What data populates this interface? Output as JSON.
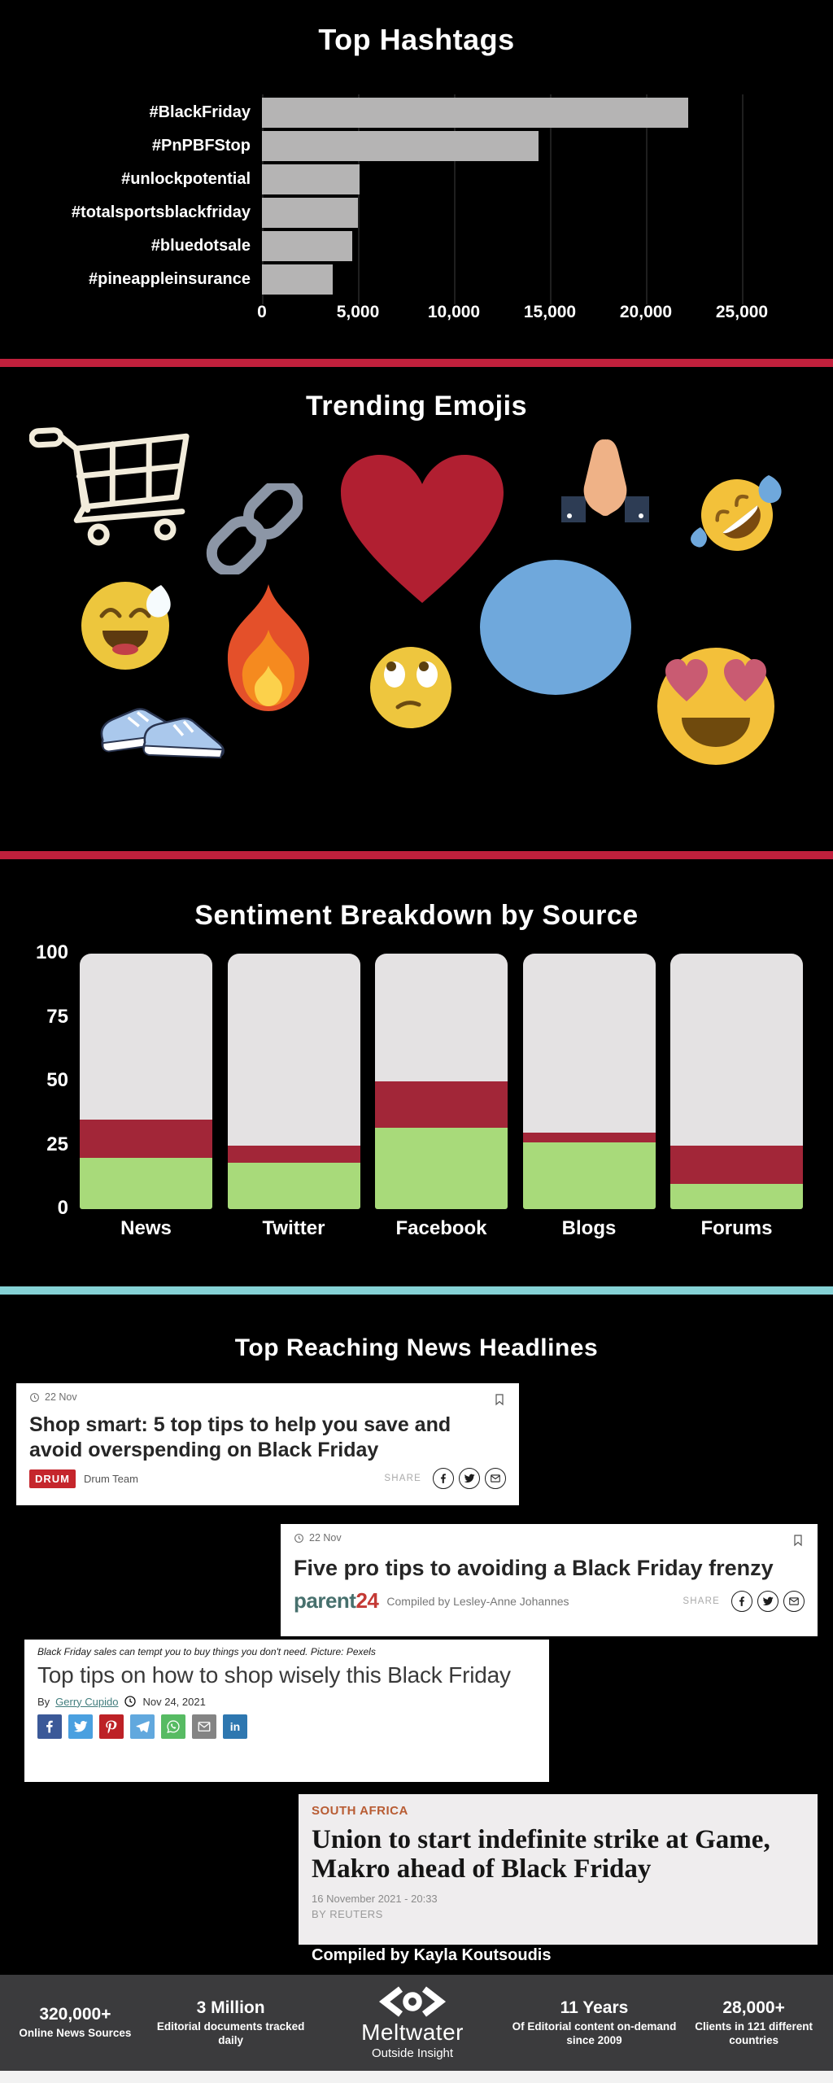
{
  "page": {
    "background": "#000000"
  },
  "chart_data": [
    {
      "type": "bar",
      "orientation": "horizontal",
      "title": "Top Hashtags",
      "categories": [
        "#BlackFriday",
        "#PnPBFStop",
        "#unlockpotential",
        "#totalsportsblackfriday",
        "#bluedotsale",
        "#pineappleinsurance"
      ],
      "values": [
        22200,
        14400,
        5100,
        5000,
        4700,
        3700
      ],
      "xlabel": "",
      "ylabel": "",
      "xlim": [
        0,
        25000
      ],
      "xtick_values": [
        0,
        5000,
        10000,
        15000,
        20000,
        25000
      ],
      "xtick_labels": [
        "0",
        "5,000",
        "10,000",
        "15,000",
        "20,000",
        "25,000"
      ],
      "grid": true,
      "bar_color": "#b5b4b4",
      "legend": false
    },
    {
      "type": "bar",
      "stacked": true,
      "title": "Sentiment Breakdown by Source",
      "categories": [
        "News",
        "Twitter",
        "Facebook",
        "Blogs",
        "Forums"
      ],
      "series": [
        {
          "name": "positive",
          "color": "#a8da7a",
          "values": [
            20,
            18,
            32,
            26,
            10
          ]
        },
        {
          "name": "negative",
          "color": "#a22638",
          "values": [
            15,
            7,
            18,
            4,
            15
          ]
        },
        {
          "name": "neutral",
          "color": "#e4e2e3",
          "values": [
            65,
            75,
            50,
            70,
            75
          ]
        }
      ],
      "ylim": [
        0,
        100
      ],
      "yticks": [
        0,
        25,
        50,
        75,
        100
      ],
      "grid": false,
      "legend": false
    }
  ],
  "emojis": {
    "title": "Trending Emojis",
    "items": [
      "shopping-cart",
      "chain-link",
      "red-heart",
      "praying-hands",
      "rofl-face",
      "sweat-smile-face",
      "fire",
      "blue-circle",
      "rolling-eyes-face",
      "heart-eyes-face",
      "running-shoes"
    ]
  },
  "headlines": {
    "title": "Top Reaching News Headlines",
    "share_label": "SHARE",
    "compiled_by": "Compiled by Kayla Koutsoudis",
    "cards": [
      {
        "date": "22 Nov",
        "headline": "Shop smart: 5 top tips to help you save and avoid overspending on Black Friday",
        "source_logo": "DRUM",
        "source": "Drum Team"
      },
      {
        "date": "22 Nov",
        "headline": "Five pro tips to avoiding a Black Friday frenzy",
        "logo_parts": [
          "parent",
          "24"
        ],
        "byline": "Compiled by Lesley-Anne Johannes"
      },
      {
        "caption": "Black Friday sales can tempt you to buy things you don't need. Picture: Pexels",
        "headline": "Top tips on how to shop wisely this Black Friday",
        "byline_prefix": "By",
        "author": "Gerry Cupido",
        "date": "Nov 24, 2021"
      },
      {
        "kicker": "SOUTH AFRICA",
        "headline": "Union to start indefinite strike at Game, Makro ahead of Black Friday",
        "date": "16 November 2021 - 20:33",
        "byline": "BY REUTERS"
      }
    ]
  },
  "social": {
    "share_icons": [
      "facebook",
      "twitter",
      "email"
    ],
    "glyphs": {
      "linkedin": "in"
    },
    "card3_icons": [
      {
        "name": "facebook",
        "color": "#3b5998"
      },
      {
        "name": "twitter",
        "color": "#4aa0e0"
      },
      {
        "name": "pinterest",
        "color": "#bd2126"
      },
      {
        "name": "telegram",
        "color": "#61a8de"
      },
      {
        "name": "whatsapp",
        "color": "#57bb63"
      },
      {
        "name": "email",
        "color": "#848484"
      },
      {
        "name": "linkedin",
        "color": "#2e77b0"
      }
    ]
  },
  "footer": {
    "stats": [
      {
        "value": "320,000+",
        "label": "Online News Sources"
      },
      {
        "value": "3 Million",
        "label": "Editorial documents tracked daily"
      },
      {
        "value": "11 Years",
        "label": "Of Editorial content on-demand since 2009"
      },
      {
        "value": "28,000+",
        "label": "Clients in 121 different countries"
      }
    ],
    "brand": {
      "name": "Meltwater",
      "tagline": "Outside Insight"
    }
  },
  "colors": {
    "divider_red": "#c0203c",
    "divider_teal": "#85d1d5",
    "footer_bg": "#3b3b3d",
    "heart_red": "#b11f31"
  }
}
